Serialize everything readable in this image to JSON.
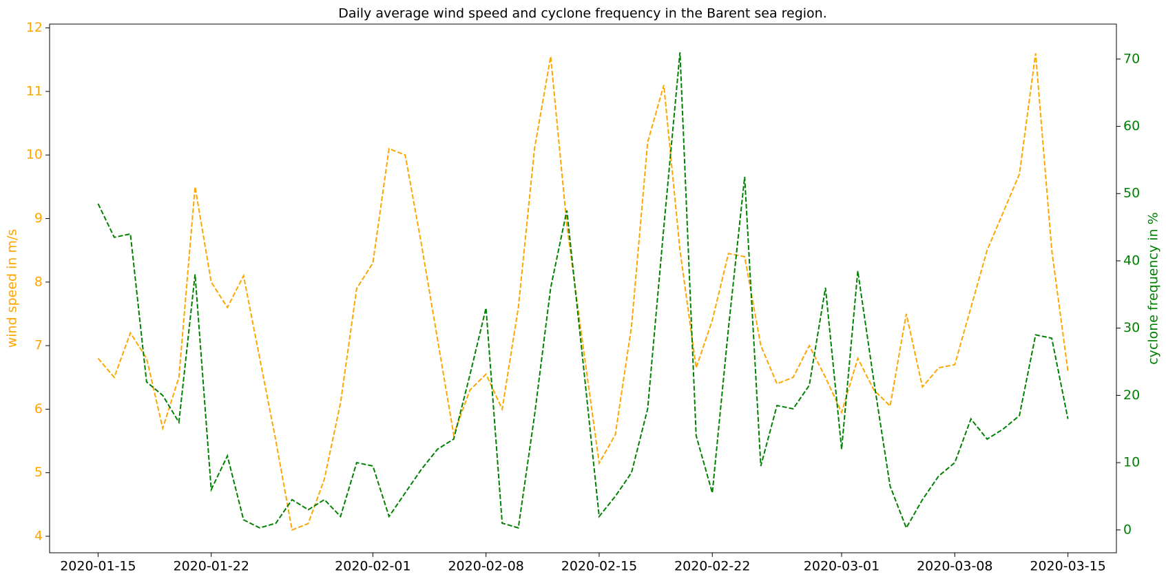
{
  "chart_data": {
    "type": "line",
    "title": "Daily average wind speed and cyclone frequency in the Barent sea region.",
    "ylabel": "wind speed in m/s",
    "y2label": "cyclone frequency in %",
    "x": [
      "2020-01-15",
      "2020-01-16",
      "2020-01-17",
      "2020-01-18",
      "2020-01-19",
      "2020-01-20",
      "2020-01-21",
      "2020-01-22",
      "2020-01-23",
      "2020-01-24",
      "2020-01-25",
      "2020-01-26",
      "2020-01-27",
      "2020-01-28",
      "2020-01-29",
      "2020-01-30",
      "2020-01-31",
      "2020-02-01",
      "2020-02-02",
      "2020-02-03",
      "2020-02-04",
      "2020-02-05",
      "2020-02-06",
      "2020-02-07",
      "2020-02-08",
      "2020-02-09",
      "2020-02-10",
      "2020-02-11",
      "2020-02-12",
      "2020-02-13",
      "2020-02-14",
      "2020-02-15",
      "2020-02-16",
      "2020-02-17",
      "2020-02-18",
      "2020-02-19",
      "2020-02-20",
      "2020-02-21",
      "2020-02-22",
      "2020-02-23",
      "2020-02-24",
      "2020-02-25",
      "2020-02-26",
      "2020-02-27",
      "2020-02-28",
      "2020-02-29",
      "2020-03-01",
      "2020-03-02",
      "2020-03-03",
      "2020-03-04",
      "2020-03-05",
      "2020-03-06",
      "2020-03-07",
      "2020-03-08",
      "2020-03-09",
      "2020-03-10",
      "2020-03-11",
      "2020-03-12",
      "2020-03-13",
      "2020-03-14",
      "2020-03-15"
    ],
    "series": [
      {
        "color": "#ffa500",
        "axis": "y",
        "values": [
          6.8,
          6.5,
          7.2,
          6.8,
          5.7,
          6.5,
          9.5,
          8.0,
          7.6,
          8.1,
          6.8,
          5.5,
          4.1,
          4.2,
          4.9,
          6.1,
          7.9,
          8.3,
          10.1,
          10.0,
          8.6,
          7.1,
          5.6,
          6.3,
          6.55,
          6.0,
          7.6,
          10.1,
          11.55,
          8.9,
          7.0,
          5.15,
          5.6,
          7.3,
          10.2,
          11.1,
          8.5,
          6.65,
          7.4,
          8.45,
          8.4,
          7.0,
          6.4,
          6.5,
          7.0,
          6.5,
          5.95,
          6.8,
          6.3,
          6.05,
          7.5,
          6.35,
          6.65,
          6.7,
          7.6,
          8.5,
          9.1,
          9.7,
          11.6,
          8.5,
          6.6
        ]
      },
      {
        "color": "#008000",
        "axis": "y2",
        "values": [
          48.5,
          43.5,
          44,
          22,
          20,
          16,
          38,
          6,
          11,
          1.5,
          0.3,
          1,
          4.5,
          3,
          4.5,
          2,
          10,
          9.5,
          2,
          5.5,
          9,
          12,
          13.5,
          23,
          33,
          1,
          0.3,
          17,
          36,
          47.5,
          25,
          2,
          5,
          8.5,
          18,
          45,
          71,
          14,
          5.5,
          30,
          52.5,
          9.5,
          18.5,
          18,
          21.5,
          36,
          12,
          38.5,
          22,
          6.5,
          0.3,
          4.5,
          8,
          10,
          16.5,
          13.5,
          15,
          17,
          29,
          28.5,
          16.5
        ]
      }
    ],
    "xlim": [
      "2020-01-12",
      "2020-03-18"
    ],
    "xticks": [
      "2020-01-15",
      "2020-01-22",
      "2020-02-01",
      "2020-02-08",
      "2020-02-15",
      "2020-02-22",
      "2020-03-01",
      "2020-03-08",
      "2020-03-15"
    ],
    "ylim": [
      3.74,
      12.06
    ],
    "yticks": [
      4,
      5,
      6,
      7,
      8,
      9,
      10,
      11,
      12
    ],
    "y2lim": [
      -3.4,
      75.2
    ],
    "y2ticks": [
      0,
      10,
      20,
      30,
      40,
      50,
      60,
      70
    ],
    "grid": false,
    "line_style": "dashed"
  }
}
